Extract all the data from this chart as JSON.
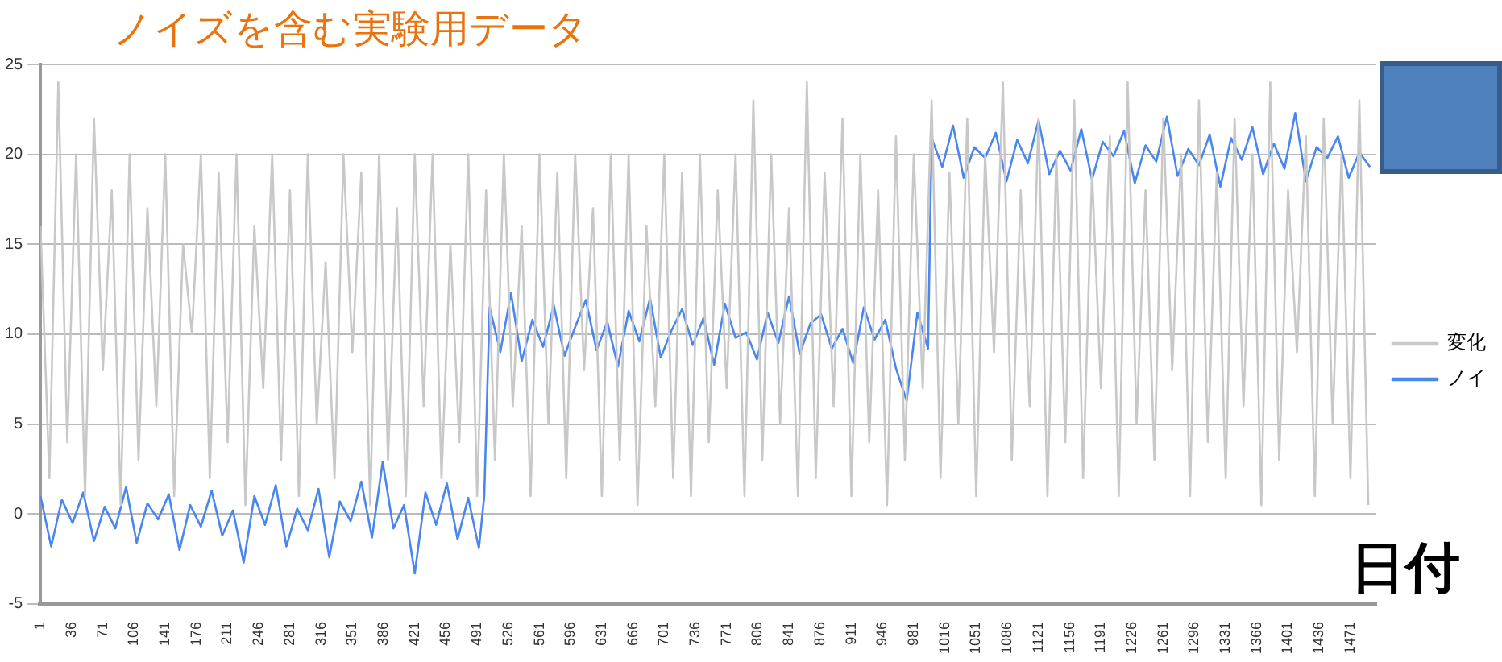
{
  "chart_data": {
    "type": "line",
    "title": "ノイズを含む実験用データ",
    "xlabel": "日付",
    "xlim": [
      1,
      1500
    ],
    "xticks": [
      1,
      36,
      71,
      106,
      141,
      176,
      211,
      246,
      281,
      316,
      351,
      386,
      421,
      456,
      491,
      526,
      561,
      596,
      631,
      666,
      701,
      736,
      771,
      806,
      841,
      876,
      911,
      946,
      981,
      1016,
      1051,
      1086,
      1121,
      1156,
      1191,
      1226,
      1261,
      1296,
      1331,
      1366,
      1401,
      1436,
      1471
    ],
    "ylim": [
      -5,
      25
    ],
    "yticks": [
      -5,
      0,
      5,
      10,
      15,
      20,
      25
    ],
    "grid": "y",
    "legend": "right",
    "marker": "none",
    "line_style": "solid",
    "series": [
      {
        "name": "変化",
        "color": "#c8c8c8",
        "x": [
          1,
          11,
          21,
          31,
          41,
          51,
          61,
          71,
          81,
          91,
          101,
          111,
          121,
          131,
          141,
          151,
          161,
          171,
          181,
          191,
          201,
          211,
          221,
          231,
          241,
          251,
          261,
          271,
          281,
          291,
          301,
          311,
          321,
          331,
          341,
          351,
          361,
          371,
          381,
          391,
          401,
          411,
          421,
          431,
          441,
          451,
          461,
          471,
          481,
          491,
          501,
          511,
          521,
          531,
          541,
          551,
          561,
          571,
          581,
          591,
          601,
          611,
          621,
          631,
          641,
          651,
          661,
          671,
          681,
          691,
          701,
          711,
          721,
          731,
          741,
          751,
          761,
          771,
          781,
          791,
          801,
          811,
          821,
          831,
          841,
          851,
          861,
          871,
          881,
          891,
          901,
          911,
          921,
          931,
          941,
          951,
          961,
          971,
          981,
          991,
          1001,
          1011,
          1021,
          1031,
          1041,
          1051,
          1061,
          1071,
          1081,
          1091,
          1101,
          1111,
          1121,
          1131,
          1141,
          1151,
          1161,
          1171,
          1181,
          1191,
          1201,
          1211,
          1221,
          1231,
          1241,
          1251,
          1261,
          1271,
          1281,
          1291,
          1301,
          1311,
          1321,
          1331,
          1341,
          1351,
          1361,
          1371,
          1381,
          1391,
          1401,
          1411,
          1421,
          1431,
          1441,
          1451,
          1461,
          1471,
          1481,
          1491
        ],
        "values": [
          16,
          2,
          24,
          4,
          20,
          1,
          22,
          8,
          18,
          0.5,
          20,
          3,
          17,
          6,
          20,
          1,
          15,
          10,
          20,
          2,
          19,
          4,
          20,
          0.5,
          16,
          7,
          20,
          3,
          18,
          1,
          20,
          5,
          14,
          2,
          20,
          9,
          19,
          0.5,
          20,
          3,
          17,
          1,
          20,
          6,
          20,
          2,
          15,
          4,
          20,
          1,
          18,
          3,
          20,
          6,
          16,
          1,
          20,
          5,
          19,
          2,
          20,
          8,
          17,
          1,
          20,
          3,
          20,
          0.5,
          16,
          6,
          20,
          2,
          19,
          1,
          20,
          4,
          18,
          7,
          20,
          1,
          23,
          3,
          20,
          5,
          17,
          1,
          24,
          2,
          19,
          6,
          22,
          1,
          20,
          4,
          18,
          0.5,
          21,
          3,
          20,
          7,
          23,
          2,
          19,
          5,
          22,
          1,
          20,
          9,
          24,
          3,
          18,
          6,
          22,
          1,
          20,
          4,
          23,
          2,
          19,
          7,
          21,
          1,
          24,
          5,
          18,
          3,
          22,
          8,
          20,
          1,
          23,
          4,
          19,
          2,
          22,
          6,
          20,
          0.5,
          24,
          3,
          18,
          9,
          21,
          1,
          22,
          5,
          20,
          2,
          23,
          0.5
        ]
      },
      {
        "name": "ノイ",
        "color": "#4a86f0",
        "x": [
          1,
          13,
          25,
          37,
          49,
          61,
          73,
          85,
          97,
          109,
          121,
          133,
          145,
          157,
          169,
          181,
          193,
          205,
          217,
          229,
          241,
          253,
          265,
          277,
          289,
          301,
          313,
          325,
          337,
          349,
          361,
          373,
          385,
          397,
          409,
          421,
          433,
          445,
          457,
          469,
          481,
          493,
          499,
          505,
          517,
          529,
          541,
          553,
          565,
          577,
          589,
          601,
          613,
          625,
          637,
          649,
          661,
          673,
          685,
          697,
          709,
          721,
          733,
          745,
          757,
          769,
          781,
          793,
          805,
          817,
          829,
          841,
          853,
          865,
          877,
          889,
          901,
          913,
          925,
          937,
          949,
          961,
          973,
          985,
          997,
          1001,
          1013,
          1025,
          1037,
          1049,
          1061,
          1073,
          1085,
          1097,
          1109,
          1121,
          1133,
          1145,
          1157,
          1169,
          1181,
          1193,
          1205,
          1217,
          1229,
          1241,
          1253,
          1265,
          1277,
          1289,
          1301,
          1313,
          1325,
          1337,
          1349,
          1361,
          1373,
          1385,
          1397,
          1409,
          1421,
          1433,
          1445,
          1457,
          1469,
          1481,
          1493
        ],
        "values": [
          1,
          -1.8,
          0.8,
          -0.5,
          1.2,
          -1.5,
          0.4,
          -0.8,
          1.5,
          -1.6,
          0.6,
          -0.3,
          1.1,
          -2,
          0.5,
          -0.7,
          1.3,
          -1.2,
          0.2,
          -2.7,
          1,
          -0.6,
          1.6,
          -1.8,
          0.3,
          -0.9,
          1.4,
          -2.4,
          0.7,
          -0.4,
          1.8,
          -1.3,
          2.9,
          -0.8,
          0.5,
          -3.3,
          1.2,
          -0.6,
          1.7,
          -1.4,
          0.9,
          -1.9,
          1,
          11.5,
          9,
          12.3,
          8.5,
          10.8,
          9.3,
          11.6,
          8.8,
          10.4,
          11.9,
          9.1,
          10.7,
          8.2,
          11.3,
          9.6,
          12,
          8.7,
          10.2,
          11.4,
          9.4,
          10.9,
          8.3,
          11.7,
          9.8,
          10.1,
          8.6,
          11.2,
          9.5,
          12.1,
          8.9,
          10.6,
          11.1,
          9.2,
          10.3,
          8.4,
          11.5,
          9.7,
          10.8,
          8.1,
          6.3,
          11.2,
          9.2,
          20.9,
          19.3,
          21.6,
          18.7,
          20.4,
          19.8,
          21.2,
          18.5,
          20.8,
          19.5,
          21.9,
          18.9,
          20.2,
          19.1,
          21.4,
          18.6,
          20.7,
          19.9,
          21.3,
          18.4,
          20.5,
          19.6,
          22.1,
          18.8,
          20.3,
          19.4,
          21.1,
          18.2,
          20.9,
          19.7,
          21.5,
          18.9,
          20.6,
          19.2,
          22.3,
          18.5,
          20.4,
          19.8,
          21,
          18.7,
          20.1,
          19.3
        ]
      }
    ]
  }
}
